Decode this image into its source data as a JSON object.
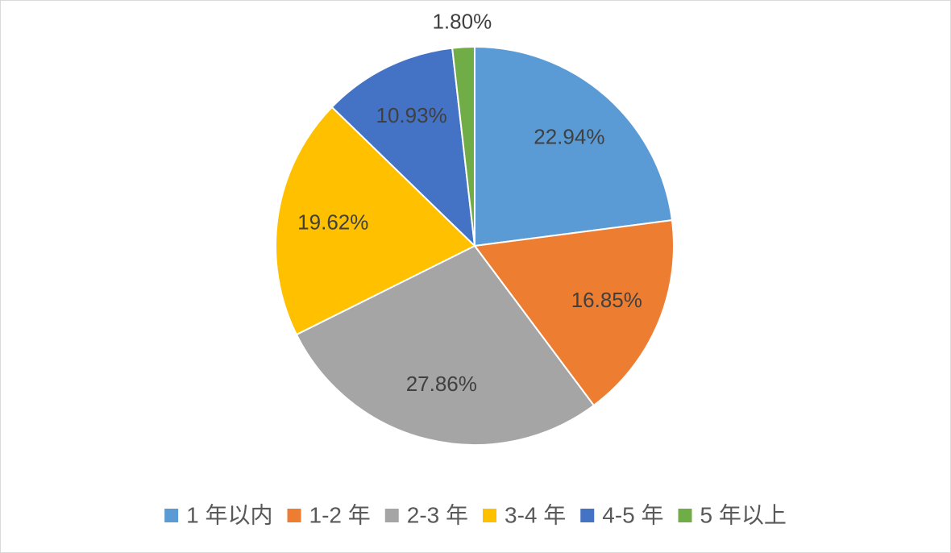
{
  "chart_data": {
    "type": "pie",
    "categories": [
      "1 年以内",
      "1-2 年",
      "2-3 年",
      "3-4 年",
      "4-5 年",
      "5 年以上"
    ],
    "values": [
      22.94,
      16.85,
      27.86,
      19.62,
      10.93,
      1.8
    ],
    "value_labels": [
      "22.94%",
      "16.85%",
      "27.86%",
      "19.62%",
      "10.93%",
      "1.80%"
    ],
    "colors": [
      "#5b9bd5",
      "#ed7d31",
      "#a5a5a5",
      "#ffc000",
      "#4472c4",
      "#70ad47"
    ],
    "legend": "bottom"
  }
}
